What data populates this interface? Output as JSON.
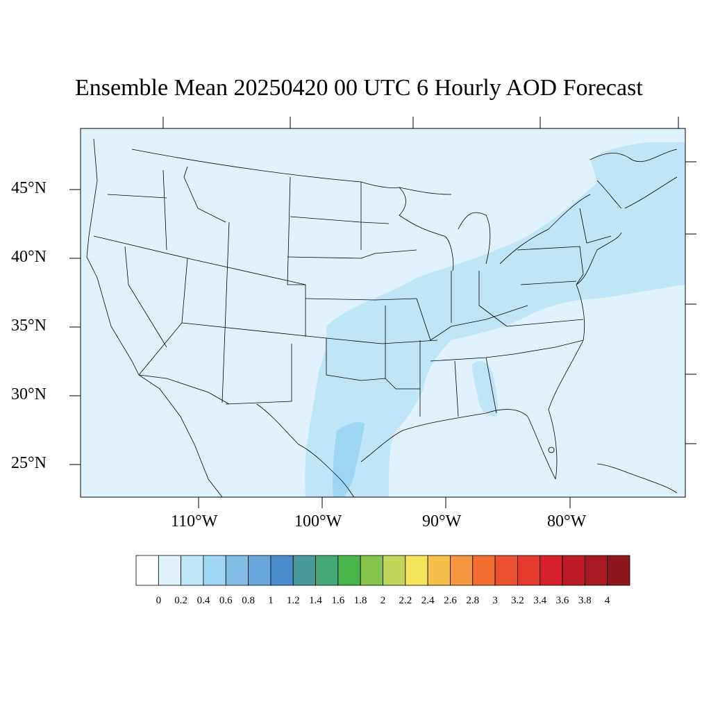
{
  "title": "Ensemble Mean 20250420 00 UTC 6 Hourly AOD Forecast",
  "lat_labels": [
    "45°N",
    "40°N",
    "35°N",
    "30°N",
    "25°N"
  ],
  "lon_labels": [
    "110°W",
    "100°W",
    "90°W",
    "80°W"
  ],
  "colorbar": {
    "labels": [
      "0",
      "0.2",
      "0.4",
      "0.6",
      "0.8",
      "1",
      "1.2",
      "1.4",
      "1.6",
      "1.8",
      "2",
      "2.2",
      "2.4",
      "2.6",
      "2.8",
      "3",
      "3.2",
      "3.4",
      "3.6",
      "3.8",
      "4"
    ],
    "colors": [
      "#ffffff",
      "#dff2fb",
      "#bfe5f8",
      "#9fd6f4",
      "#82bde6",
      "#68a6dc",
      "#4a8ccc",
      "#48999a",
      "#47a877",
      "#49b44a",
      "#86c44e",
      "#c2d65c",
      "#f7e45e",
      "#f6bf4c",
      "#f59740",
      "#f26d30",
      "#ec5231",
      "#e33a2d",
      "#d41f2c",
      "#bd1c27",
      "#a71a22",
      "#8f161c"
    ]
  },
  "colors": {
    "background_aod": "#dff2fb",
    "aod_0_4": "#bfe5f8",
    "aod_0_6": "#9fd6f4"
  }
}
